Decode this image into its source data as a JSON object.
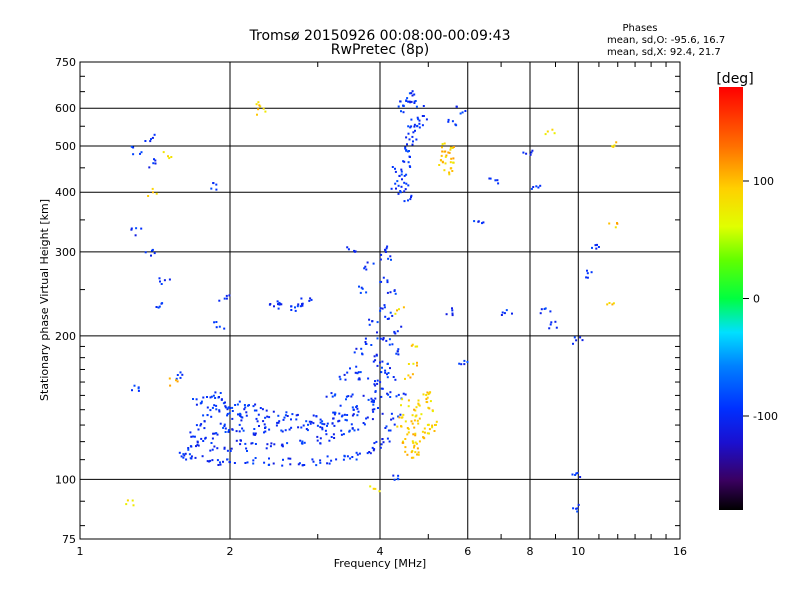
{
  "header": {
    "title_line1": "Tromsø 20150926 00:08:00-00:09:43",
    "title_line2": "RwPretec (8p)"
  },
  "stats": {
    "heading": "Phases",
    "line_o": "mean, sd,O: -95.6, 16.7",
    "line_x": "mean, sd,X:  92.4, 21.7"
  },
  "colorbar": {
    "label": "[deg]",
    "ticks": [
      100,
      0,
      -100
    ],
    "range": [
      -180,
      180
    ]
  },
  "chart_data": {
    "type": "scatter",
    "title": "Tromsø 20150926 00:08:00-00:09:43",
    "subtitle": "RwPretec (8p)",
    "xlabel": "Frequency [MHz]",
    "ylabel": "Stationary phase Virtual Height [km]",
    "x_scale": "log",
    "y_scale": "log",
    "xlim": [
      1,
      16
    ],
    "ylim": [
      75,
      750
    ],
    "x_ticks": [
      1,
      2,
      4,
      6,
      8,
      10,
      16
    ],
    "x_minor_ticks": [
      3,
      5,
      7,
      9,
      11,
      12,
      13,
      14,
      15
    ],
    "y_ticks": [
      75,
      100,
      200,
      300,
      400,
      500,
      600,
      750
    ],
    "y_minor_ticks": [
      80,
      90,
      110,
      120,
      130,
      140,
      150,
      160,
      170,
      180,
      190,
      250,
      350,
      450,
      550,
      650,
      700
    ],
    "grid": true,
    "color_encoding": "phase [deg]",
    "series": [
      {
        "mode": "O",
        "phase_mean": -95.6,
        "phase_sd": 16.7,
        "points": [
          [
            1.62,
            112
          ],
          [
            1.7,
            111
          ],
          [
            1.8,
            110
          ],
          [
            1.9,
            109
          ],
          [
            2.0,
            109
          ],
          [
            2.2,
            109
          ],
          [
            2.4,
            109
          ],
          [
            2.6,
            109
          ],
          [
            2.8,
            109
          ],
          [
            3.0,
            109
          ],
          [
            3.2,
            110
          ],
          [
            3.4,
            110
          ],
          [
            3.6,
            112
          ],
          [
            3.8,
            115
          ],
          [
            3.95,
            118
          ],
          [
            4.1,
            122
          ],
          [
            4.2,
            128
          ],
          [
            4.3,
            135
          ],
          [
            4.4,
            150
          ],
          [
            1.7,
            118
          ],
          [
            1.85,
            117
          ],
          [
            2.0,
            116
          ],
          [
            2.2,
            117
          ],
          [
            2.4,
            118
          ],
          [
            2.6,
            119
          ],
          [
            2.8,
            120
          ],
          [
            3.0,
            121
          ],
          [
            3.2,
            123
          ],
          [
            3.4,
            125
          ],
          [
            3.6,
            128
          ],
          [
            3.8,
            133
          ],
          [
            3.95,
            140
          ],
          [
            4.1,
            150
          ],
          [
            4.2,
            165
          ],
          [
            4.3,
            185
          ],
          [
            4.35,
            205
          ],
          [
            1.7,
            125
          ],
          [
            1.85,
            124
          ],
          [
            2.0,
            125
          ],
          [
            2.2,
            126
          ],
          [
            2.4,
            127
          ],
          [
            2.6,
            128
          ],
          [
            2.8,
            129
          ],
          [
            3.0,
            130
          ],
          [
            3.2,
            132
          ],
          [
            3.4,
            135
          ],
          [
            3.6,
            140
          ],
          [
            3.8,
            148
          ],
          [
            3.95,
            160
          ],
          [
            4.05,
            175
          ],
          [
            4.15,
            195
          ],
          [
            4.2,
            220
          ],
          [
            4.25,
            245
          ],
          [
            1.72,
            145
          ],
          [
            1.8,
            147
          ],
          [
            1.9,
            146
          ],
          [
            2.0,
            144
          ],
          [
            2.1,
            143
          ],
          [
            2.2,
            141
          ],
          [
            2.3,
            139
          ],
          [
            2.4,
            137
          ],
          [
            2.55,
            136
          ],
          [
            2.7,
            135
          ],
          [
            3.0,
            134
          ],
          [
            3.3,
            135
          ],
          [
            3.6,
            138
          ],
          [
            3.85,
            145
          ],
          [
            4.0,
            155
          ],
          [
            4.1,
            170
          ],
          [
            1.85,
            140
          ],
          [
            1.95,
            138
          ],
          [
            2.05,
            136
          ],
          [
            2.15,
            134
          ],
          [
            2.3,
            132
          ],
          [
            3.5,
            150
          ],
          [
            3.7,
            165
          ],
          [
            3.85,
            180
          ],
          [
            4.0,
            200
          ],
          [
            4.05,
            230
          ],
          [
            4.1,
            260
          ],
          [
            4.12,
            290
          ],
          [
            4.15,
            305
          ],
          [
            1.75,
            130
          ],
          [
            1.95,
            130
          ],
          [
            2.1,
            128
          ],
          [
            2.5,
            131
          ],
          [
            2.9,
            132
          ],
          [
            3.1,
            128
          ],
          [
            3.3,
            140
          ],
          [
            3.55,
            170
          ],
          [
            3.75,
            195
          ],
          [
            3.9,
            215
          ],
          [
            1.65,
            115
          ],
          [
            1.75,
            120
          ],
          [
            1.8,
            135
          ],
          [
            1.9,
            150
          ],
          [
            2.0,
            140
          ],
          [
            2.1,
            120
          ],
          [
            3.2,
            150
          ],
          [
            3.4,
            165
          ],
          [
            3.6,
            185
          ],
          [
            3.7,
            250
          ],
          [
            3.8,
            280
          ],
          [
            4.3,
            400
          ],
          [
            4.4,
            420
          ],
          [
            4.45,
            440
          ],
          [
            4.5,
            460
          ],
          [
            4.55,
            480
          ],
          [
            4.6,
            500
          ],
          [
            4.62,
            520
          ],
          [
            4.65,
            540
          ],
          [
            4.7,
            560
          ],
          [
            4.8,
            555
          ],
          [
            4.4,
            600
          ],
          [
            4.5,
            620
          ],
          [
            4.6,
            630
          ],
          [
            4.7,
            640
          ],
          [
            4.8,
            610
          ],
          [
            4.85,
            580
          ],
          [
            4.35,
            450
          ],
          [
            4.45,
            410
          ],
          [
            4.55,
            390
          ],
          [
            2.55,
            230
          ],
          [
            2.65,
            228
          ],
          [
            2.75,
            232
          ],
          [
            2.85,
            235
          ],
          [
            2.45,
            233
          ],
          [
            1.3,
            490
          ],
          [
            1.3,
            330
          ],
          [
            1.38,
            520
          ],
          [
            1.38,
            300
          ],
          [
            1.4,
            460
          ],
          [
            1.45,
            230
          ],
          [
            1.48,
            260
          ],
          [
            1.85,
            410
          ],
          [
            1.9,
            210
          ],
          [
            1.95,
            240
          ],
          [
            1.6,
            165
          ],
          [
            1.3,
            155
          ],
          [
            3.5,
            305
          ],
          [
            4.35,
            100
          ],
          [
            6.3,
            345
          ],
          [
            6.8,
            420
          ],
          [
            7.2,
            225
          ],
          [
            7.9,
            480
          ],
          [
            8.2,
            410
          ],
          [
            8.6,
            225
          ],
          [
            8.9,
            210
          ],
          [
            10.0,
            195
          ],
          [
            9.8,
            87
          ],
          [
            9.9,
            102
          ],
          [
            10.6,
            270
          ],
          [
            10.8,
            305
          ],
          [
            5.6,
            560
          ],
          [
            5.8,
            595
          ],
          [
            5.9,
            175
          ],
          [
            5.5,
            225
          ]
        ]
      },
      {
        "mode": "X",
        "phase_mean": 92.4,
        "phase_sd": 21.7,
        "points": [
          [
            4.55,
            120
          ],
          [
            4.6,
            125
          ],
          [
            4.65,
            128
          ],
          [
            4.7,
            132
          ],
          [
            4.75,
            135
          ],
          [
            4.8,
            138
          ],
          [
            4.85,
            142
          ],
          [
            4.9,
            146
          ],
          [
            4.95,
            150
          ],
          [
            5.0,
            148
          ],
          [
            5.05,
            140
          ],
          [
            5.1,
            132
          ],
          [
            4.6,
            116
          ],
          [
            4.7,
            118
          ],
          [
            4.8,
            121
          ],
          [
            4.9,
            124
          ],
          [
            5.0,
            126
          ],
          [
            5.1,
            128
          ],
          [
            4.65,
            112
          ],
          [
            4.75,
            114
          ],
          [
            5.35,
            460
          ],
          [
            5.4,
            470
          ],
          [
            5.45,
            480
          ],
          [
            5.5,
            490
          ],
          [
            5.55,
            470
          ],
          [
            5.6,
            455
          ],
          [
            5.45,
            500
          ],
          [
            5.5,
            440
          ],
          [
            4.55,
            165
          ],
          [
            4.65,
            175
          ],
          [
            4.7,
            190
          ],
          [
            4.5,
            145
          ],
          [
            4.45,
            135
          ],
          [
            4.4,
            130
          ],
          [
            1.4,
            400
          ],
          [
            1.5,
            480
          ],
          [
            1.55,
            160
          ],
          [
            1.25,
            90
          ],
          [
            2.3,
            610
          ],
          [
            2.3,
            590
          ],
          [
            3.9,
            95
          ],
          [
            4.4,
            225
          ],
          [
            8.8,
            540
          ],
          [
            11.6,
            230
          ],
          [
            11.7,
            340
          ],
          [
            11.8,
            500
          ]
        ]
      }
    ]
  }
}
